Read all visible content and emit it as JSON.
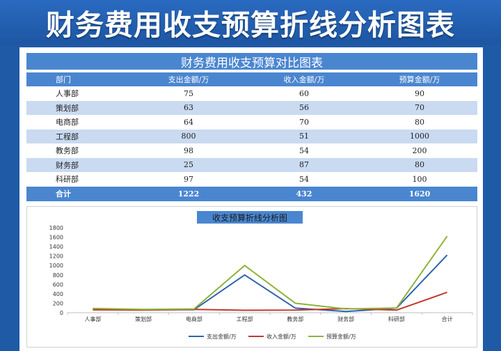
{
  "banner": {
    "title": "财务费用收支预算折线分析图表"
  },
  "table": {
    "title": "财务费用收支预算对比图表",
    "headers": [
      "部门",
      "支出金额/万",
      "收入金额/万",
      "预算金额/万"
    ],
    "rows": [
      [
        "人事部",
        "75",
        "60",
        "90"
      ],
      [
        "策划部",
        "63",
        "56",
        "70"
      ],
      [
        "电商部",
        "64",
        "70",
        "80"
      ],
      [
        "工程部",
        "800",
        "51",
        "1000"
      ],
      [
        "教务部",
        "98",
        "54",
        "200"
      ],
      [
        "财务部",
        "25",
        "87",
        "80"
      ],
      [
        "科研部",
        "97",
        "54",
        "100"
      ]
    ],
    "total": [
      "合计",
      "1222",
      "432",
      "1620"
    ]
  },
  "colors": {
    "spending": "#2e63b0",
    "income": "#c0392b",
    "budget": "#8db33a",
    "header_blue": "#4a86d0",
    "alt_row": "#c9daf1"
  },
  "chart_data": {
    "type": "line",
    "title": "收支预算折线分析图",
    "categories": [
      "人事部",
      "策划部",
      "电商部",
      "工程部",
      "教务部",
      "财务部",
      "科研部",
      "合计"
    ],
    "series": [
      {
        "name": "支出金额/万",
        "values": [
          75,
          63,
          64,
          800,
          98,
          25,
          97,
          1222
        ]
      },
      {
        "name": "收入金额/万",
        "values": [
          60,
          56,
          70,
          51,
          54,
          87,
          54,
          432
        ]
      },
      {
        "name": "预算金额/万",
        "values": [
          90,
          70,
          80,
          1000,
          200,
          80,
          100,
          1620
        ]
      }
    ],
    "ylim": [
      0,
      1800
    ],
    "yticks": [
      0,
      200,
      400,
      600,
      800,
      1000,
      1200,
      1400,
      1600,
      1800
    ],
    "grid": false,
    "legend": "bottom"
  }
}
